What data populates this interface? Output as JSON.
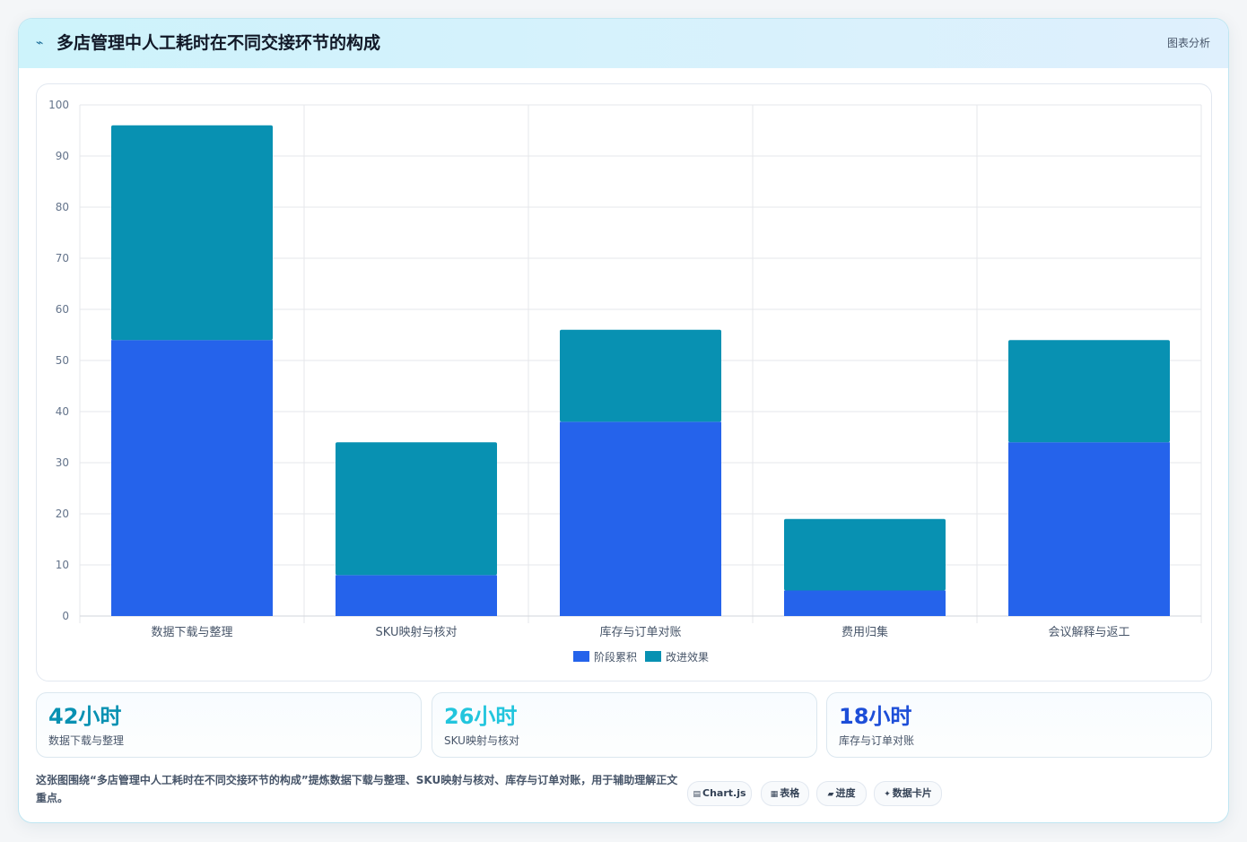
{
  "header": {
    "title": "多店管理中人工耗时在不同交接环节的构成",
    "tag": "图表分析",
    "icon": "pulse-icon"
  },
  "colors": {
    "series1": "#2563eb",
    "series2": "#0891b2",
    "stat1": "#0891b2",
    "stat2": "#22c5dd",
    "stat3": "#1d4ed8"
  },
  "chart_data": {
    "type": "bar",
    "stacked": true,
    "categories": [
      "数据下载与整理",
      "SKU映射与核对",
      "库存与订单对账",
      "费用归集",
      "会议解释与返工"
    ],
    "series": [
      {
        "name": "阶段累积",
        "values": [
          54,
          8,
          38,
          5,
          34
        ]
      },
      {
        "name": "改进效果",
        "values": [
          42,
          26,
          18,
          14,
          20
        ]
      }
    ],
    "ylim": [
      0,
      100
    ],
    "yticks": [
      0,
      10,
      20,
      30,
      40,
      50,
      60,
      70,
      80,
      90,
      100
    ],
    "grid": true,
    "legend": "bottom-center"
  },
  "stats": [
    {
      "value": "42小时",
      "label": "数据下载与整理"
    },
    {
      "value": "26小时",
      "label": "SKU映射与核对"
    },
    {
      "value": "18小时",
      "label": "库存与订单对账"
    }
  ],
  "footnote": "这张图围绕“多店管理中人工耗时在不同交接环节的构成”提炼数据下载与整理、SKU映射与核对、库存与订单对账，用于辅助理解正文重点。",
  "tags": [
    {
      "icon": "▤",
      "label": "Chart.js"
    },
    {
      "icon": "▦",
      "label": "表格"
    },
    {
      "icon": "▰",
      "label": "进度"
    },
    {
      "icon": "✦",
      "label": "数据卡片"
    }
  ]
}
